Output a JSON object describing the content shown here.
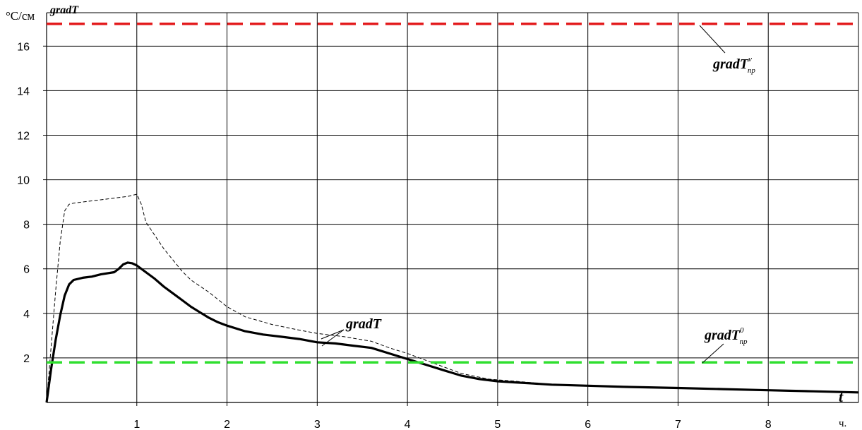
{
  "chart_data": {
    "type": "line",
    "y_unit": "°C/см",
    "ylabel": "gradT",
    "xlabel": "t",
    "x_unit": "ч.",
    "xlim": [
      0,
      9
    ],
    "ylim": [
      0,
      17.5
    ],
    "x_ticks": [
      "1",
      "2",
      "3",
      "4",
      "5",
      "6",
      "7",
      "8"
    ],
    "y_ticks": [
      "2",
      "4",
      "6",
      "8",
      "10",
      "12",
      "14",
      "16"
    ],
    "grid": true,
    "series": [
      {
        "name": "gradT",
        "style": "solid-thick",
        "color": "#000000",
        "points": [
          [
            0,
            0.0
          ],
          [
            0.05,
            1.5
          ],
          [
            0.1,
            2.8
          ],
          [
            0.15,
            3.9
          ],
          [
            0.2,
            4.8
          ],
          [
            0.25,
            5.3
          ],
          [
            0.3,
            5.5
          ],
          [
            0.4,
            5.6
          ],
          [
            0.5,
            5.65
          ],
          [
            0.6,
            5.75
          ],
          [
            0.75,
            5.85
          ],
          [
            0.8,
            6.0
          ],
          [
            0.85,
            6.2
          ],
          [
            0.9,
            6.28
          ],
          [
            0.95,
            6.25
          ],
          [
            1.0,
            6.15
          ],
          [
            1.1,
            5.85
          ],
          [
            1.2,
            5.55
          ],
          [
            1.3,
            5.2
          ],
          [
            1.4,
            4.9
          ],
          [
            1.5,
            4.6
          ],
          [
            1.6,
            4.3
          ],
          [
            1.7,
            4.05
          ],
          [
            1.8,
            3.8
          ],
          [
            1.9,
            3.6
          ],
          [
            2.0,
            3.45
          ],
          [
            2.2,
            3.2
          ],
          [
            2.4,
            3.05
          ],
          [
            2.6,
            2.95
          ],
          [
            2.8,
            2.85
          ],
          [
            3.0,
            2.7
          ],
          [
            3.2,
            2.65
          ],
          [
            3.4,
            2.55
          ],
          [
            3.6,
            2.45
          ],
          [
            3.8,
            2.2
          ],
          [
            4.0,
            1.95
          ],
          [
            4.2,
            1.7
          ],
          [
            4.4,
            1.45
          ],
          [
            4.6,
            1.2
          ],
          [
            4.8,
            1.05
          ],
          [
            5.0,
            0.95
          ],
          [
            5.2,
            0.9
          ],
          [
            5.4,
            0.85
          ],
          [
            5.6,
            0.8
          ],
          [
            6.0,
            0.75
          ],
          [
            6.4,
            0.7
          ],
          [
            7.0,
            0.65
          ],
          [
            7.5,
            0.6
          ],
          [
            8.0,
            0.55
          ],
          [
            8.5,
            0.5
          ],
          [
            9.0,
            0.45
          ]
        ]
      },
      {
        "name": "gradT",
        "style": "dashed-thin",
        "color": "#000000",
        "points": [
          [
            0,
            0.0
          ],
          [
            0.05,
            2.5
          ],
          [
            0.1,
            5.0
          ],
          [
            0.15,
            7.2
          ],
          [
            0.2,
            8.6
          ],
          [
            0.25,
            8.9
          ],
          [
            0.3,
            8.95
          ],
          [
            0.5,
            9.05
          ],
          [
            0.7,
            9.15
          ],
          [
            0.9,
            9.25
          ],
          [
            1.0,
            9.35
          ],
          [
            1.05,
            8.9
          ],
          [
            1.1,
            8.1
          ],
          [
            1.2,
            7.5
          ],
          [
            1.3,
            6.9
          ],
          [
            1.4,
            6.4
          ],
          [
            1.5,
            5.9
          ],
          [
            1.6,
            5.5
          ],
          [
            1.8,
            4.95
          ],
          [
            2.0,
            4.3
          ],
          [
            2.2,
            3.85
          ],
          [
            2.5,
            3.5
          ],
          [
            2.8,
            3.25
          ],
          [
            3.0,
            3.1
          ],
          [
            3.3,
            2.95
          ],
          [
            3.6,
            2.75
          ],
          [
            3.8,
            2.45
          ],
          [
            4.0,
            2.2
          ],
          [
            4.3,
            1.75
          ],
          [
            4.6,
            1.3
          ],
          [
            4.9,
            1.05
          ],
          [
            5.2,
            0.95
          ],
          [
            5.4,
            0.88
          ]
        ]
      },
      {
        "name": "gradT_пр^ν",
        "style": "dashed-red",
        "color": "#e31a1c",
        "constant": 17.0
      },
      {
        "name": "gradT_пр^0",
        "style": "dashed-green",
        "color": "#2fdf2f",
        "constant": 1.8
      }
    ],
    "annotations": {
      "upper_label_main": "gradT",
      "upper_label_sup": "ν",
      "upper_label_sub": "пр",
      "lower_label_main": "gradT",
      "lower_label_sup": "0",
      "lower_label_sub": "пр",
      "curve_label": "gradT"
    }
  }
}
